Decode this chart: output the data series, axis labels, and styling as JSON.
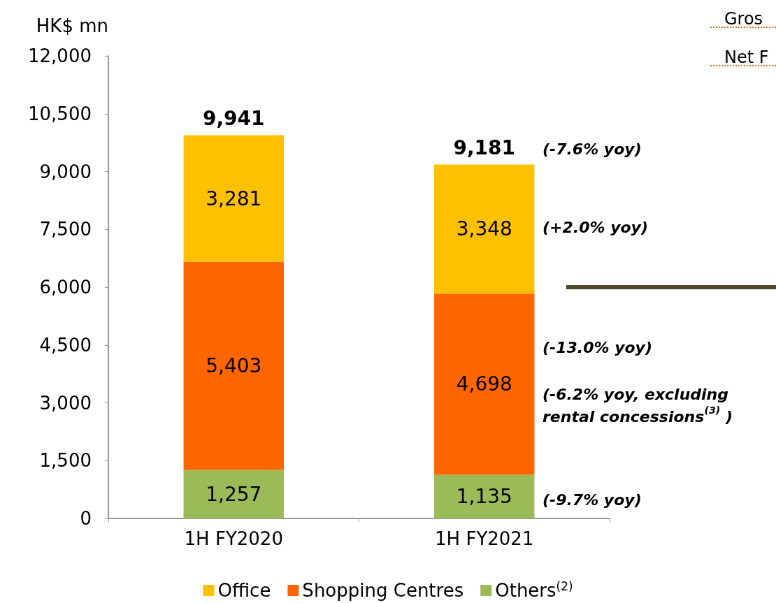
{
  "chart_data": {
    "type": "bar",
    "stacked": true,
    "ylabel": "HK$ mn",
    "categories": [
      "1H FY2020",
      "1H FY2021"
    ],
    "series": [
      {
        "name": "Others$^{(2)}$",
        "color": "#9bbb59",
        "values": [
          1257,
          1135
        ],
        "value_labels": [
          "1,257",
          "1,135"
        ]
      },
      {
        "name": "Shopping Centres",
        "color": "#ff6600",
        "values": [
          5403,
          4698
        ],
        "value_labels": [
          "5,403",
          "4,698"
        ]
      },
      {
        "name": "Office",
        "color": "#ffc000",
        "values": [
          3281,
          3348
        ],
        "value_labels": [
          "3,281",
          "3,348"
        ]
      }
    ],
    "ylim": [
      0,
      12000
    ],
    "yticks": [
      0,
      {
        "value": 1500,
        "label": "1,500"
      },
      {
        "value": 3000,
        "label": "3,000"
      },
      {
        "value": 4500,
        "label": "4,500"
      },
      {
        "value": 6000,
        "label": "6,000"
      },
      {
        "value": 7500,
        "label": "7,500"
      },
      {
        "value": 9000,
        "label": "9,000"
      },
      {
        "value": 10500,
        "label": "10,500"
      },
      {
        "value": 12000,
        "label": "12,000"
      }
    ],
    "grid": false,
    "legend": "bottom",
    "totals": [
      "9,941",
      "9,181"
    ],
    "annotations": [
      "(-7.6% yoy)",
      "(+2.0% yoy)",
      "(-13.0% yoy)",
      "(-6.2% yoy, excluding\nrental concessions$^{(3)}$ )",
      "(-9.7% yoy)",
      "Gros",
      "Net F"
    ]
  }
}
